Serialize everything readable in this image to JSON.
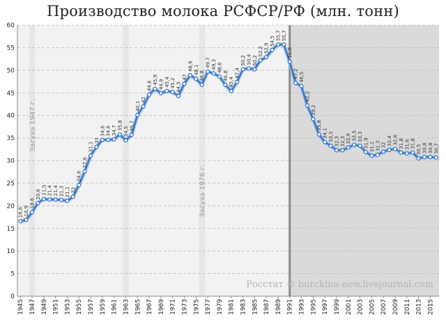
{
  "chart_data": {
    "type": "line",
    "title": "Производство молока РСФСР/РФ (млн. тонн)",
    "xlabel": "",
    "ylabel": "",
    "ylim": [
      0,
      60
    ],
    "yticks": [
      "0",
      "5",
      "10",
      "15",
      "20",
      "25",
      "30",
      "35",
      "40",
      "45",
      "50",
      "55",
      "60"
    ],
    "xticks": [
      "1945",
      "1947",
      "1949",
      "1951",
      "1953",
      "1955",
      "1957",
      "1959",
      "1961",
      "1963",
      "1965",
      "1967",
      "1969",
      "1971",
      "1973",
      "1975",
      "1977",
      "1979",
      "1981",
      "1983",
      "1985",
      "1987",
      "1989",
      "1991",
      "1993",
      "1995",
      "1997",
      "1999",
      "2001",
      "2003",
      "2005",
      "2007",
      "2009",
      "2011",
      "2013",
      "2015"
    ],
    "grid": true,
    "legend": "none",
    "series": [
      {
        "color": "#3c78c8",
        "x": [
          1945,
          1946,
          1947,
          1948,
          1949,
          1950,
          1951,
          1952,
          1953,
          1954,
          1955,
          1956,
          1957,
          1958,
          1959,
          1960,
          1961,
          1962,
          1963,
          1964,
          1965,
          1966,
          1967,
          1968,
          1969,
          1970,
          1971,
          1972,
          1973,
          1974,
          1975,
          1976,
          1977,
          1978,
          1979,
          1980,
          1981,
          1982,
          1983,
          1984,
          1985,
          1986,
          1987,
          1988,
          1989,
          1990,
          1991,
          1992,
          1993,
          1994,
          1995,
          1996,
          1997,
          1998,
          1999,
          2000,
          2001,
          2002,
          2003,
          2004,
          2005,
          2006,
          2007,
          2008,
          2009,
          2010,
          2011,
          2012,
          2013,
          2014,
          2015,
          2016
        ],
        "values": [
          16.6,
          16.9,
          18.6,
          20.6,
          21.5,
          21.4,
          21.4,
          21.3,
          21.1,
          22,
          24.6,
          27.6,
          31.1,
          33,
          34.6,
          34.6,
          34.7,
          35.8,
          34.5,
          35.7,
          40.1,
          42,
          44.6,
          45.9,
          44.9,
          45.4,
          45.2,
          44.3,
          47,
          48.9,
          48.1,
          46.8,
          49.7,
          49.3,
          48.6,
          46.8,
          45.4,
          47.4,
          50.2,
          50.4,
          50.2,
          52.2,
          52.9,
          54.5,
          55.7,
          55.7,
          51.9,
          47.2,
          46.5,
          42.2,
          39.2,
          35.8,
          34.1,
          33.3,
          32.3,
          32.3,
          32.9,
          33.5,
          33.3,
          31.9,
          31.1,
          31.3,
          32,
          32.4,
          32.6,
          31.8,
          31.6,
          31.8,
          30.5,
          30.8,
          30.8,
          30.7
        ],
        "labels": [
          "16,6",
          "16,9",
          "18,6",
          "20,6",
          "21,5",
          "21,4",
          "21,4",
          "21,3",
          "21,1",
          "22",
          "24,6",
          "27,6",
          "31,1",
          "33",
          "34,6",
          "34,6",
          "34,7",
          "35,8",
          "34,5",
          "35,7",
          "40,1",
          "42",
          "44,6",
          "45,9",
          "44,9",
          "45,4",
          "45,2",
          "44,3",
          "47",
          "48,9",
          "48,1",
          "46,8",
          "49,7",
          "49,3",
          "48,6",
          "46,8",
          "45,4",
          "47,4",
          "50,2",
          "50,4",
          "50,2",
          "52,2",
          "52,9",
          "54,5",
          "55,7",
          "55,7",
          "51,9",
          "47,2",
          "46,5",
          "42,2",
          "39,2",
          "35,8",
          "34,1",
          "33,3",
          "32,3",
          "32,3",
          "32,9",
          "33,5",
          "33,3",
          "31,9",
          "31,1",
          "31,3",
          "32",
          "32,4",
          "32,6",
          "31,8",
          "31,6",
          "31,8",
          "30,5",
          "30,8",
          "30,8",
          "30,7"
        ]
      }
    ],
    "annotations": [
      {
        "text": "Засуха 1947 г.",
        "year": 1947
      },
      {
        "text": "Засуха 1976 г.",
        "year": 1976
      }
    ],
    "shaded_years": [
      1947,
      1963,
      1976
    ],
    "period_split_year": 1991,
    "colors": {
      "background_soviet": "#f2f2f2",
      "background_russia": "#dadada",
      "shade_band": "#e6e6e6",
      "split_line": "#8a8a8a",
      "grid": "#bdbdbd",
      "line": "#3c78c8",
      "marker_fill": "#ffffff"
    }
  },
  "watermark": "Росстат © burckina-new.livejournal.com"
}
